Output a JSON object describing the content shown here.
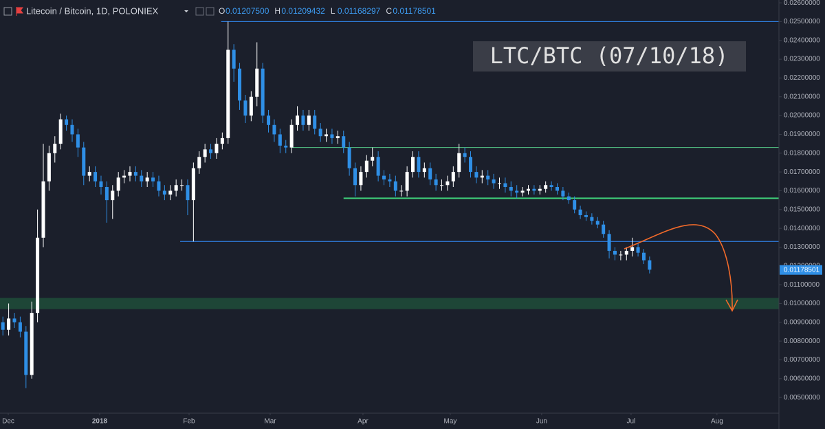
{
  "chart_data": {
    "type": "candlestick",
    "title": "Litecoin / Bitcoin, 1D, POLONIEX",
    "ohlc": [
      {
        "key": "O",
        "value": 0.012075,
        "label": "0.01207500"
      },
      {
        "key": "H",
        "value": 0.01209432,
        "label": "0.01209432"
      },
      {
        "key": "L",
        "value": 0.01168297,
        "label": "0.01168297"
      },
      {
        "key": "C",
        "value": 0.01178501,
        "label": "0.01178501"
      }
    ],
    "annotation": "LTC/BTC (07/10/18)",
    "up_color": "#ffffff",
    "down_color": "#2f8fe6",
    "open": [
      0.009,
      0.0086,
      0.0092,
      0.009,
      0.0085,
      0.0062,
      0.0095,
      0.0135,
      0.0165,
      0.018,
      0.0185,
      0.0198,
      0.0195,
      0.019,
      0.0183,
      0.0168,
      0.017,
      0.0165,
      0.0162,
      0.0155,
      0.016,
      0.0167,
      0.0168,
      0.017,
      0.0168,
      0.0165,
      0.0167,
      0.0165,
      0.016,
      0.0158,
      0.016,
      0.0163,
      0.0163,
      0.0155,
      0.0172,
      0.0178,
      0.0182,
      0.018,
      0.0185,
      0.0188,
      0.0235,
      0.0225,
      0.0208,
      0.02,
      0.021,
      0.0225,
      0.02,
      0.0195,
      0.019,
      0.0184,
      0.0183,
      0.0195,
      0.02,
      0.0195,
      0.02,
      0.0193,
      0.0189,
      0.019,
      0.0188,
      0.0189,
      0.0183,
      0.0172,
      0.0163,
      0.017,
      0.0176,
      0.0178,
      0.0168,
      0.0166,
      0.0165,
      0.016,
      0.016,
      0.017,
      0.0178,
      0.017,
      0.0172,
      0.0166,
      0.0163,
      0.0163,
      0.0165,
      0.017,
      0.018,
      0.0178,
      0.017,
      0.0167,
      0.0168,
      0.0166,
      0.0164,
      0.0164,
      0.0162,
      0.016,
      0.0159,
      0.016,
      0.0161,
      0.016,
      0.0161,
      0.0163,
      0.0162,
      0.016,
      0.0157,
      0.0155,
      0.015,
      0.0147,
      0.0146,
      0.0144,
      0.0142,
      0.0137,
      0.0128,
      0.0126,
      0.0126,
      0.0128,
      0.013,
      0.0127,
      0.0123
    ],
    "high": [
      0.0093,
      0.01,
      0.0095,
      0.0093,
      0.0088,
      0.0101,
      0.015,
      0.0185,
      0.0184,
      0.0189,
      0.0201,
      0.02,
      0.0198,
      0.0193,
      0.0186,
      0.0173,
      0.0173,
      0.0168,
      0.0165,
      0.0163,
      0.017,
      0.0171,
      0.0173,
      0.0173,
      0.0171,
      0.017,
      0.017,
      0.0168,
      0.0163,
      0.0163,
      0.0166,
      0.0166,
      0.0166,
      0.0175,
      0.0181,
      0.0185,
      0.0185,
      0.0188,
      0.0191,
      0.025,
      0.0238,
      0.0228,
      0.0211,
      0.0213,
      0.0239,
      0.0228,
      0.0203,
      0.0198,
      0.0193,
      0.0187,
      0.0198,
      0.0205,
      0.0203,
      0.0203,
      0.0203,
      0.0196,
      0.0193,
      0.0193,
      0.0192,
      0.0192,
      0.0186,
      0.0175,
      0.0173,
      0.0179,
      0.0183,
      0.0181,
      0.0171,
      0.0169,
      0.0168,
      0.0163,
      0.0173,
      0.0181,
      0.0181,
      0.0175,
      0.0175,
      0.0169,
      0.0166,
      0.0168,
      0.0173,
      0.0185,
      0.0183,
      0.0181,
      0.0173,
      0.0171,
      0.0171,
      0.0169,
      0.0167,
      0.0167,
      0.0165,
      0.0163,
      0.0162,
      0.0163,
      0.0163,
      0.0163,
      0.0165,
      0.0165,
      0.0164,
      0.0162,
      0.0159,
      0.0157,
      0.0152,
      0.0149,
      0.0148,
      0.0146,
      0.0144,
      0.0139,
      0.013,
      0.0128,
      0.013,
      0.0135,
      0.0132,
      0.0129,
      0.0125
    ],
    "low": [
      0.0083,
      0.0083,
      0.0087,
      0.0082,
      0.0055,
      0.006,
      0.009,
      0.013,
      0.016,
      0.0175,
      0.0182,
      0.0192,
      0.0186,
      0.0178,
      0.0163,
      0.0165,
      0.0162,
      0.0158,
      0.0143,
      0.0145,
      0.0157,
      0.0164,
      0.0165,
      0.0165,
      0.0162,
      0.0162,
      0.0162,
      0.0157,
      0.0155,
      0.0155,
      0.0157,
      0.016,
      0.0147,
      0.0133,
      0.0169,
      0.0175,
      0.0177,
      0.0177,
      0.0182,
      0.0185,
      0.0218,
      0.0203,
      0.0196,
      0.0197,
      0.0205,
      0.0196,
      0.0191,
      0.0186,
      0.018,
      0.018,
      0.018,
      0.0192,
      0.0192,
      0.0192,
      0.019,
      0.0186,
      0.0186,
      0.0185,
      0.0185,
      0.018,
      0.0168,
      0.0157,
      0.016,
      0.0167,
      0.0173,
      0.0165,
      0.0163,
      0.0162,
      0.0157,
      0.0157,
      0.0157,
      0.0167,
      0.0167,
      0.0167,
      0.0163,
      0.016,
      0.016,
      0.016,
      0.0162,
      0.0167,
      0.0175,
      0.0167,
      0.0164,
      0.0164,
      0.0163,
      0.0161,
      0.0161,
      0.0159,
      0.0157,
      0.0156,
      0.0157,
      0.0158,
      0.0158,
      0.0158,
      0.0159,
      0.016,
      0.0158,
      0.0155,
      0.0153,
      0.0148,
      0.0145,
      0.0144,
      0.0142,
      0.014,
      0.0135,
      0.0124,
      0.0123,
      0.0123,
      0.0123,
      0.0125,
      0.0125,
      0.0121,
      0.0116
    ],
    "close": [
      0.0086,
      0.0092,
      0.009,
      0.0085,
      0.0062,
      0.0095,
      0.0135,
      0.0165,
      0.018,
      0.0185,
      0.0198,
      0.0195,
      0.019,
      0.0183,
      0.0168,
      0.017,
      0.0165,
      0.0162,
      0.0155,
      0.016,
      0.0167,
      0.0168,
      0.017,
      0.0168,
      0.0165,
      0.0167,
      0.0165,
      0.016,
      0.0158,
      0.016,
      0.0163,
      0.0163,
      0.0155,
      0.0172,
      0.0178,
      0.0182,
      0.018,
      0.0185,
      0.0188,
      0.0235,
      0.0225,
      0.0208,
      0.02,
      0.021,
      0.0225,
      0.02,
      0.0195,
      0.019,
      0.0184,
      0.0183,
      0.0195,
      0.02,
      0.0195,
      0.02,
      0.0193,
      0.0189,
      0.019,
      0.0188,
      0.0189,
      0.0183,
      0.0172,
      0.0163,
      0.017,
      0.0176,
      0.0178,
      0.0168,
      0.0166,
      0.0165,
      0.016,
      0.016,
      0.017,
      0.0178,
      0.017,
      0.0172,
      0.0166,
      0.0163,
      0.0163,
      0.0165,
      0.017,
      0.018,
      0.0178,
      0.017,
      0.0167,
      0.0168,
      0.0166,
      0.0164,
      0.0164,
      0.0162,
      0.016,
      0.0159,
      0.016,
      0.0161,
      0.016,
      0.0161,
      0.0163,
      0.0162,
      0.016,
      0.0157,
      0.0155,
      0.015,
      0.0147,
      0.0146,
      0.0144,
      0.0142,
      0.0137,
      0.0128,
      0.0126,
      0.0126,
      0.0128,
      0.013,
      0.0127,
      0.0123,
      0.0118
    ],
    "xlim": [
      -0.5,
      134.4
    ],
    "xticks": [
      {
        "value": 0.93,
        "label": "Dec"
      },
      {
        "value": 16.76,
        "label": "2018"
      },
      {
        "value": 32.24,
        "label": "Feb"
      },
      {
        "value": 46.29,
        "label": "Mar"
      },
      {
        "value": 62.36,
        "label": "Apr"
      },
      {
        "value": 77.48,
        "label": "May"
      },
      {
        "value": 93.31,
        "label": "Jun"
      },
      {
        "value": 108.79,
        "label": "Jul"
      },
      {
        "value": 123.67,
        "label": "Aug"
      }
    ],
    "ylim": [
      0.0042,
      0.02615
    ],
    "yticks": [
      {
        "value": 0.005,
        "label": "0.00500000"
      },
      {
        "value": 0.006,
        "label": "0.00600000"
      },
      {
        "value": 0.007,
        "label": "0.00700000"
      },
      {
        "value": 0.008,
        "label": "0.00800000"
      },
      {
        "value": 0.009,
        "label": "0.00900000"
      },
      {
        "value": 0.01,
        "label": "0.01000000"
      },
      {
        "value": 0.011,
        "label": "0.01100000"
      },
      {
        "value": 0.012,
        "label": "0.01200000"
      },
      {
        "value": 0.013,
        "label": "0.01300000"
      },
      {
        "value": 0.014,
        "label": "0.01400000"
      },
      {
        "value": 0.015,
        "label": "0.01500000"
      },
      {
        "value": 0.016,
        "label": "0.01600000"
      },
      {
        "value": 0.017,
        "label": "0.01700000"
      },
      {
        "value": 0.018,
        "label": "0.01800000"
      },
      {
        "value": 0.019,
        "label": "0.01900000"
      },
      {
        "value": 0.02,
        "label": "0.02000000"
      },
      {
        "value": 0.021,
        "label": "0.02100000"
      },
      {
        "value": 0.022,
        "label": "0.02200000"
      },
      {
        "value": 0.023,
        "label": "0.02300000"
      },
      {
        "value": 0.024,
        "label": "0.02400000"
      },
      {
        "value": 0.025,
        "label": "0.02500000"
      },
      {
        "value": 0.026,
        "label": "0.02600000"
      }
    ],
    "grid": false,
    "levels": [
      {
        "value": 0.025,
        "from": 37.8,
        "color": "#2f7fe0"
      },
      {
        "value": 0.0133,
        "from": 30.7,
        "color": "#2f7fe0"
      },
      {
        "value": 0.0183,
        "from": 50,
        "color": "#4caf7a"
      },
      {
        "value": 0.0156,
        "from": 59,
        "color": "#3fd07a"
      }
    ],
    "zone": {
      "low": 0.0097,
      "high": 0.0103,
      "color": "#1f4a38"
    },
    "last_price": {
      "value": 0.01178501,
      "label": "0.01178501",
      "color": "#2f8fe6"
    }
  }
}
